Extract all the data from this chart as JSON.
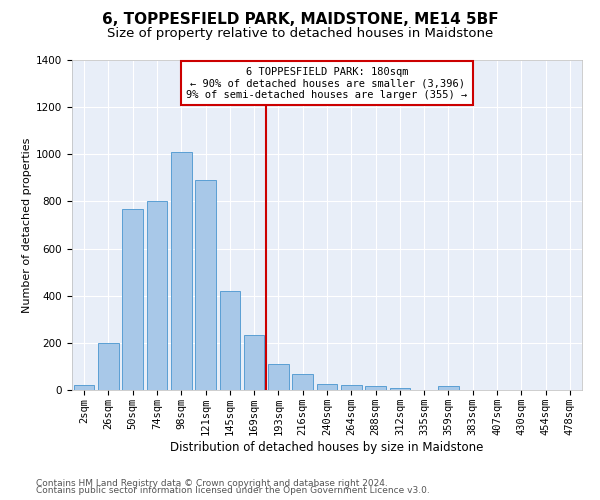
{
  "title": "6, TOPPESFIELD PARK, MAIDSTONE, ME14 5BF",
  "subtitle": "Size of property relative to detached houses in Maidstone",
  "xlabel": "Distribution of detached houses by size in Maidstone",
  "ylabel": "Number of detached properties",
  "categories": [
    "2sqm",
    "26sqm",
    "50sqm",
    "74sqm",
    "98sqm",
    "121sqm",
    "145sqm",
    "169sqm",
    "193sqm",
    "216sqm",
    "240sqm",
    "264sqm",
    "288sqm",
    "312sqm",
    "335sqm",
    "359sqm",
    "383sqm",
    "407sqm",
    "430sqm",
    "454sqm",
    "478sqm"
  ],
  "values": [
    20,
    200,
    770,
    800,
    1010,
    890,
    420,
    235,
    110,
    70,
    25,
    20,
    17,
    10,
    0,
    15,
    0,
    0,
    0,
    0,
    0
  ],
  "bar_color": "#a8c8e8",
  "bar_edgecolor": "#5a9fd4",
  "vline_x_index": 7.5,
  "vline_color": "#cc0000",
  "annotation_text": "6 TOPPESFIELD PARK: 180sqm\n← 90% of detached houses are smaller (3,396)\n9% of semi-detached houses are larger (355) →",
  "annotation_box_color": "#cc0000",
  "ylim": [
    0,
    1400
  ],
  "yticks": [
    0,
    200,
    400,
    600,
    800,
    1000,
    1200,
    1400
  ],
  "background_color": "#e8eef8",
  "grid_color": "#ffffff",
  "footer1": "Contains HM Land Registry data © Crown copyright and database right 2024.",
  "footer2": "Contains public sector information licensed under the Open Government Licence v3.0.",
  "title_fontsize": 11,
  "subtitle_fontsize": 9.5,
  "xlabel_fontsize": 8.5,
  "ylabel_fontsize": 8,
  "tick_fontsize": 7.5,
  "footer_fontsize": 6.5
}
